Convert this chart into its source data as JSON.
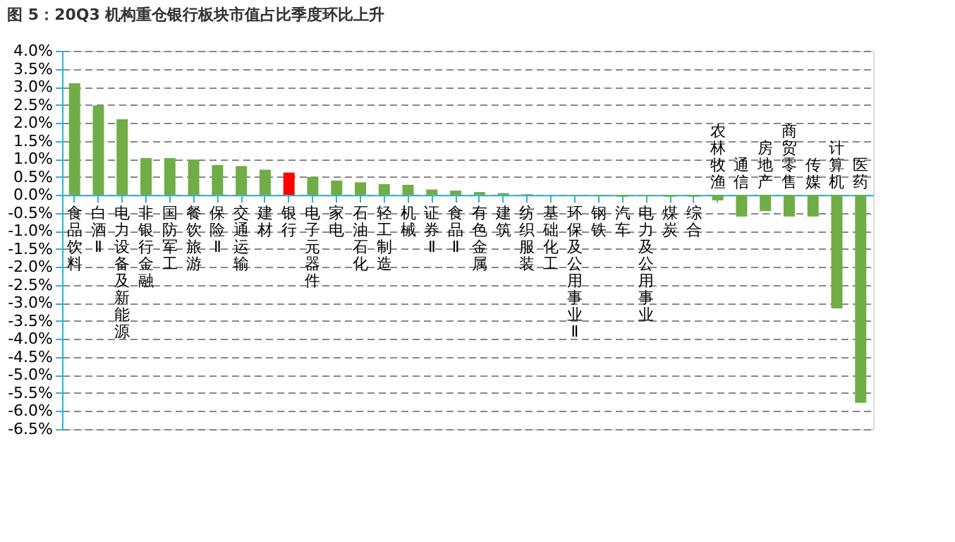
{
  "chart_data": {
    "type": "bar",
    "title": "图 5：20Q3 机构重仓银行板块市值占比季度环比上升",
    "categories": [
      "食品饮料",
      "白酒Ⅱ",
      "电力设备及新能源",
      "非银行金融",
      "国防军工",
      "餐饮旅游",
      "保险Ⅱ",
      "交通运输",
      "建材",
      "银行",
      "电子元器件",
      "家电",
      "石油石化",
      "轻工制造",
      "机械",
      "证券Ⅱ",
      "食品Ⅱ",
      "有色金属",
      "建筑",
      "纺织服装",
      "基础化工",
      "环保及公用事业Ⅱ",
      "钢铁",
      "汽车",
      "电力及公用事业",
      "煤炭",
      "综合",
      "农林牧渔",
      "通信",
      "房地产",
      "商贸零售",
      "传媒",
      "计算机",
      "医药"
    ],
    "values": [
      3.1,
      2.48,
      2.1,
      1.02,
      1.02,
      0.98,
      0.83,
      0.8,
      0.7,
      0.62,
      0.5,
      0.4,
      0.35,
      0.3,
      0.28,
      0.15,
      0.12,
      0.08,
      0.05,
      0.02,
      null,
      -0.02,
      -0.02,
      -0.05,
      -0.03,
      -0.05,
      -0.05,
      -0.15,
      -0.6,
      -0.45,
      -0.6,
      -0.6,
      -3.15,
      -5.77
    ],
    "colors": [
      "#70ad47",
      "#70ad47",
      "#70ad47",
      "#70ad47",
      "#70ad47",
      "#70ad47",
      "#70ad47",
      "#70ad47",
      "#70ad47",
      "#ff0000",
      "#70ad47",
      "#70ad47",
      "#70ad47",
      "#70ad47",
      "#70ad47",
      "#70ad47",
      "#70ad47",
      "#70ad47",
      "#70ad47",
      "#70ad47",
      "#70ad47",
      "#70ad47",
      "#70ad47",
      "#70ad47",
      "#70ad47",
      "#70ad47",
      "#70ad47",
      "#70ad47",
      "#70ad47",
      "#70ad47",
      "#70ad47",
      "#70ad47",
      "#70ad47",
      "#70ad47"
    ],
    "ylim": [
      -6.5,
      4.0
    ],
    "yticks": [
      {
        "value": -6.5,
        "label": "-6.5%"
      },
      {
        "value": -6.0,
        "label": "-6.0%"
      },
      {
        "value": -5.5,
        "label": "-5.5%"
      },
      {
        "value": -5.0,
        "label": "-5.0%"
      },
      {
        "value": -4.5,
        "label": "-4.5%"
      },
      {
        "value": -4.0,
        "label": "-4.0%"
      },
      {
        "value": -3.5,
        "label": "-3.5%"
      },
      {
        "value": -3.0,
        "label": "-3.0%"
      },
      {
        "value": -2.5,
        "label": "-2.5%"
      },
      {
        "value": -2.0,
        "label": "-2.0%"
      },
      {
        "value": -1.5,
        "label": "-1.5%"
      },
      {
        "value": -1.0,
        "label": "-1.0%"
      },
      {
        "value": -0.5,
        "label": "-0.5%"
      },
      {
        "value": 0.0,
        "label": "0.0%"
      },
      {
        "value": 0.5,
        "label": "0.5%"
      },
      {
        "value": 1.0,
        "label": "1.0%"
      },
      {
        "value": 1.5,
        "label": "1.5%"
      },
      {
        "value": 2.0,
        "label": "2.0%"
      },
      {
        "value": 2.5,
        "label": "2.5%"
      },
      {
        "value": 3.0,
        "label": "3.0%"
      },
      {
        "value": 3.5,
        "label": "3.5%"
      },
      {
        "value": 4.0,
        "label": "4.0%"
      }
    ],
    "grid": "y"
  }
}
